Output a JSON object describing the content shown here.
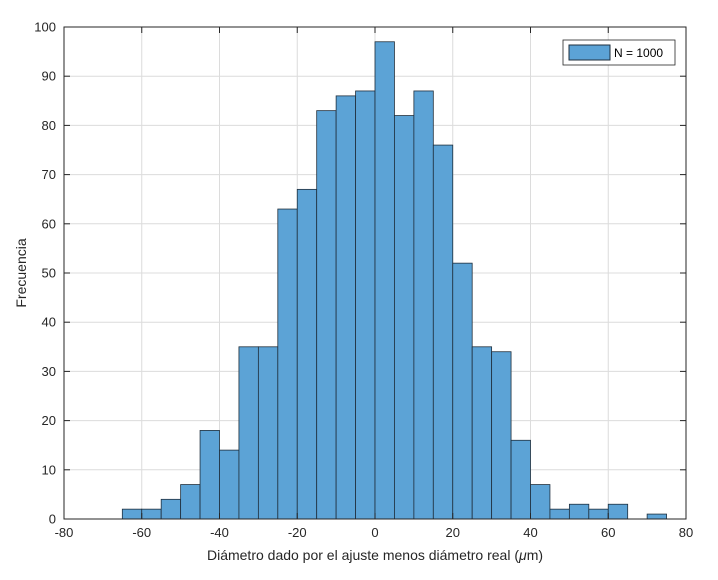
{
  "chart_data": {
    "type": "bar",
    "subtype": "histogram",
    "bin_edges": [
      -65,
      -60,
      -55,
      -50,
      -45,
      -40,
      -35,
      -30,
      -25,
      -20,
      -15,
      -10,
      -5,
      0,
      5,
      10,
      15,
      20,
      25,
      30,
      35,
      40,
      45,
      50,
      55,
      60,
      65,
      70,
      75
    ],
    "values": [
      2,
      2,
      4,
      7,
      18,
      14,
      35,
      35,
      63,
      67,
      83,
      86,
      87,
      97,
      82,
      87,
      76,
      52,
      35,
      34,
      16,
      7,
      2,
      3,
      2,
      3,
      0,
      1
    ],
    "series": [
      {
        "name": "N = 1000"
      }
    ],
    "xlabel_prefix": "Diámetro dado por el ajuste menos diámetro real (",
    "xlabel_mu": "μ",
    "xlabel_suffix": "m)",
    "ylabel": "Frecuencia",
    "xlim": [
      -80,
      80
    ],
    "ylim": [
      0,
      100
    ],
    "xticks": [
      -80,
      -60,
      -40,
      -20,
      0,
      20,
      40,
      60,
      80
    ],
    "yticks": [
      0,
      10,
      20,
      30,
      40,
      50,
      60,
      70,
      80,
      90,
      100
    ],
    "grid": true,
    "legend_position": "top-right",
    "bar_color": "#5ca3d6",
    "bar_edge_color": "#1f2f3d"
  }
}
